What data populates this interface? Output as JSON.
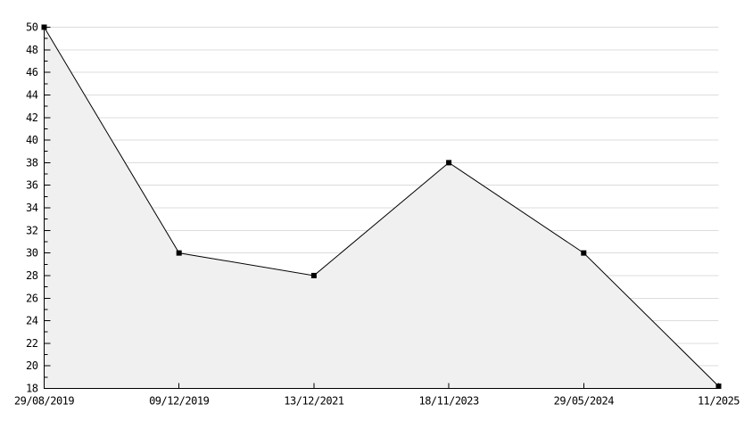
{
  "chart_data": {
    "type": "area",
    "x_tick_labels": [
      "29/08/2019",
      "09/12/2019",
      "13/12/2021",
      "18/11/2023",
      "29/05/2024",
      "11/2025"
    ],
    "values": [
      50,
      30,
      28,
      38,
      30,
      18.2
    ],
    "y_tick_labels": [
      "18",
      "20",
      "22",
      "24",
      "26",
      "28",
      "30",
      "32",
      "34",
      "36",
      "38",
      "40",
      "42",
      "44",
      "46",
      "48",
      "50"
    ],
    "ylim": [
      18,
      50
    ],
    "y_major_step": 2,
    "y_minor_step": 1,
    "grid": "horizontal-major",
    "legend": "none",
    "marker": "square",
    "colors": {
      "line": "#000000",
      "marker": "#000000",
      "area_fill": "#f0f0f0",
      "gridline": "#dcdcdc",
      "axis": "#000000",
      "label": "#000000",
      "background": "#ffffff"
    }
  }
}
